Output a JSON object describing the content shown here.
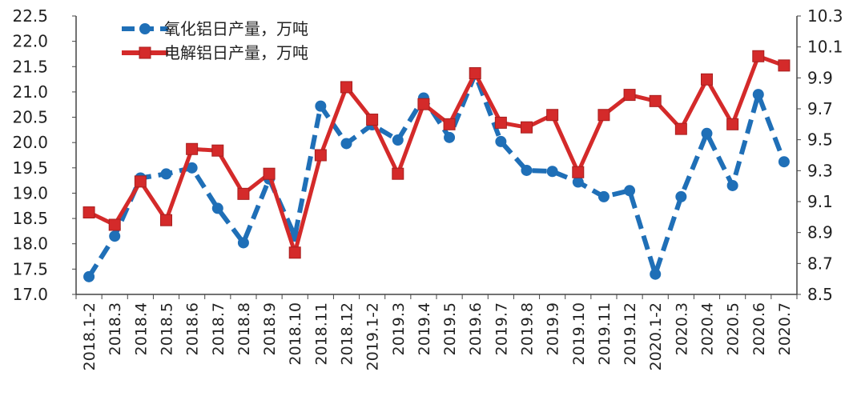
{
  "chart_data": {
    "type": "line",
    "categories": [
      "2018.1-2",
      "2018.3",
      "2018.4",
      "2018.5",
      "2018.6",
      "2018.7",
      "2018.8",
      "2018.9",
      "2018.10",
      "2018.11",
      "2018.12",
      "2019.1-2",
      "2019.3",
      "2019.4",
      "2019.5",
      "2019.6",
      "2019.7",
      "2019.8",
      "2019.9",
      "2019.10",
      "2019.11",
      "2019.12",
      "2020.1-2",
      "2020.3",
      "2020.4",
      "2020.5",
      "2020.6",
      "2020.7"
    ],
    "y_left": {
      "ylim": [
        17.0,
        22.5
      ],
      "ticks": [
        "17.0",
        "17.5",
        "18.0",
        "18.5",
        "19.0",
        "19.5",
        "20.0",
        "20.5",
        "21.0",
        "21.5",
        "22.0",
        "22.5"
      ]
    },
    "y_right": {
      "ylim": [
        8.5,
        10.3
      ],
      "ticks": [
        "8.5",
        "8.7",
        "8.9",
        "9.1",
        "9.3",
        "9.5",
        "9.7",
        "9.9",
        "10.1",
        "10.3"
      ]
    },
    "series": [
      {
        "name": "氧化铝日产量，万吨",
        "axis": "left",
        "color": "#1f6fb7",
        "style": "dashed",
        "marker": "circle",
        "values": [
          17.35,
          18.15,
          19.3,
          19.38,
          19.5,
          18.7,
          18.02,
          19.28,
          18.15,
          20.72,
          19.98,
          20.35,
          20.05,
          20.88,
          20.1,
          21.35,
          20.02,
          19.45,
          19.43,
          19.22,
          18.93,
          19.05,
          17.4,
          18.93,
          20.18,
          19.15,
          20.95,
          19.62
        ]
      },
      {
        "name": "电解铝日产量，万吨",
        "axis": "right",
        "color": "#d42a2a",
        "style": "solid",
        "marker": "square",
        "values": [
          9.03,
          8.95,
          9.23,
          8.98,
          9.44,
          9.43,
          9.15,
          9.28,
          8.77,
          9.4,
          9.84,
          9.63,
          9.28,
          9.73,
          9.6,
          9.93,
          9.61,
          9.58,
          9.66,
          9.29,
          9.66,
          9.79,
          9.75,
          9.57,
          9.89,
          9.6,
          10.04,
          9.98
        ]
      }
    ],
    "legend": {
      "placement": "top-left"
    }
  }
}
